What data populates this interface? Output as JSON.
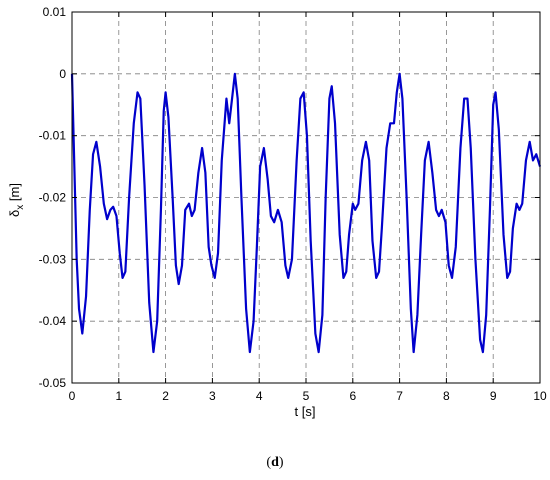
{
  "chart_data": {
    "type": "line",
    "title": "",
    "xlabel": "t [s]",
    "ylabel_main": "δ",
    "ylabel_sub": "x",
    "ylabel_unit": " [m]",
    "xlim": [
      0,
      10
    ],
    "ylim": [
      -0.05,
      0.01
    ],
    "xticks": [
      0,
      1,
      2,
      3,
      4,
      5,
      6,
      7,
      8,
      9,
      10
    ],
    "xtick_labels": [
      "0",
      "1",
      "2",
      "3",
      "4",
      "5",
      "6",
      "7",
      "8",
      "9",
      "10"
    ],
    "yticks": [
      0.01,
      0,
      -0.01,
      -0.02,
      -0.03,
      -0.04,
      -0.05
    ],
    "ytick_labels": [
      "0.01",
      "0",
      "-0.01",
      "-0.02",
      "-0.03",
      "-0.04",
      "-0.05"
    ],
    "grid": true,
    "legend": "none",
    "series": [
      {
        "color": "#0000cc",
        "points": [
          [
            0.0,
            0.0
          ],
          [
            0.05,
            -0.015
          ],
          [
            0.1,
            -0.03
          ],
          [
            0.15,
            -0.038
          ],
          [
            0.22,
            -0.042
          ],
          [
            0.3,
            -0.036
          ],
          [
            0.38,
            -0.022
          ],
          [
            0.45,
            -0.013
          ],
          [
            0.52,
            -0.011
          ],
          [
            0.6,
            -0.015
          ],
          [
            0.68,
            -0.021
          ],
          [
            0.75,
            -0.0235
          ],
          [
            0.82,
            -0.022
          ],
          [
            0.88,
            -0.0215
          ],
          [
            0.95,
            -0.023
          ],
          [
            1.02,
            -0.029
          ],
          [
            1.08,
            -0.033
          ],
          [
            1.14,
            -0.032
          ],
          [
            1.22,
            -0.02
          ],
          [
            1.32,
            -0.008
          ],
          [
            1.4,
            -0.003
          ],
          [
            1.46,
            -0.004
          ],
          [
            1.55,
            -0.018
          ],
          [
            1.65,
            -0.037
          ],
          [
            1.74,
            -0.045
          ],
          [
            1.82,
            -0.04
          ],
          [
            1.9,
            -0.022
          ],
          [
            1.96,
            -0.006
          ],
          [
            2.0,
            -0.003
          ],
          [
            2.06,
            -0.007
          ],
          [
            2.15,
            -0.02
          ],
          [
            2.22,
            -0.031
          ],
          [
            2.28,
            -0.034
          ],
          [
            2.35,
            -0.031
          ],
          [
            2.42,
            -0.022
          ],
          [
            2.5,
            -0.021
          ],
          [
            2.56,
            -0.023
          ],
          [
            2.62,
            -0.022
          ],
          [
            2.7,
            -0.016
          ],
          [
            2.78,
            -0.012
          ],
          [
            2.85,
            -0.016
          ],
          [
            2.92,
            -0.028
          ],
          [
            2.98,
            -0.031
          ],
          [
            3.05,
            -0.033
          ],
          [
            3.12,
            -0.029
          ],
          [
            3.2,
            -0.014
          ],
          [
            3.3,
            -0.004
          ],
          [
            3.36,
            -0.008
          ],
          [
            3.42,
            -0.004
          ],
          [
            3.48,
            0.0
          ],
          [
            3.54,
            -0.004
          ],
          [
            3.62,
            -0.02
          ],
          [
            3.72,
            -0.038
          ],
          [
            3.8,
            -0.045
          ],
          [
            3.88,
            -0.04
          ],
          [
            3.95,
            -0.028
          ],
          [
            4.02,
            -0.015
          ],
          [
            4.1,
            -0.012
          ],
          [
            4.18,
            -0.017
          ],
          [
            4.25,
            -0.023
          ],
          [
            4.32,
            -0.024
          ],
          [
            4.4,
            -0.022
          ],
          [
            4.48,
            -0.024
          ],
          [
            4.56,
            -0.031
          ],
          [
            4.62,
            -0.033
          ],
          [
            4.7,
            -0.03
          ],
          [
            4.8,
            -0.014
          ],
          [
            4.88,
            -0.004
          ],
          [
            4.95,
            -0.003
          ],
          [
            5.02,
            -0.01
          ],
          [
            5.1,
            -0.027
          ],
          [
            5.2,
            -0.042
          ],
          [
            5.27,
            -0.045
          ],
          [
            5.35,
            -0.039
          ],
          [
            5.42,
            -0.02
          ],
          [
            5.5,
            -0.004
          ],
          [
            5.55,
            -0.002
          ],
          [
            5.62,
            -0.008
          ],
          [
            5.72,
            -0.026
          ],
          [
            5.8,
            -0.033
          ],
          [
            5.86,
            -0.032
          ],
          [
            5.92,
            -0.026
          ],
          [
            6.0,
            -0.021
          ],
          [
            6.05,
            -0.022
          ],
          [
            6.12,
            -0.021
          ],
          [
            6.2,
            -0.014
          ],
          [
            6.28,
            -0.011
          ],
          [
            6.35,
            -0.014
          ],
          [
            6.42,
            -0.027
          ],
          [
            6.5,
            -0.033
          ],
          [
            6.56,
            -0.032
          ],
          [
            6.62,
            -0.025
          ],
          [
            6.72,
            -0.012
          ],
          [
            6.8,
            -0.008
          ],
          [
            6.88,
            -0.008
          ],
          [
            6.94,
            -0.003
          ],
          [
            7.0,
            0.0
          ],
          [
            7.06,
            -0.004
          ],
          [
            7.15,
            -0.02
          ],
          [
            7.24,
            -0.038
          ],
          [
            7.3,
            -0.045
          ],
          [
            7.38,
            -0.039
          ],
          [
            7.46,
            -0.026
          ],
          [
            7.54,
            -0.014
          ],
          [
            7.62,
            -0.011
          ],
          [
            7.7,
            -0.016
          ],
          [
            7.78,
            -0.022
          ],
          [
            7.84,
            -0.023
          ],
          [
            7.9,
            -0.022
          ],
          [
            7.98,
            -0.024
          ],
          [
            8.05,
            -0.031
          ],
          [
            8.12,
            -0.033
          ],
          [
            8.2,
            -0.028
          ],
          [
            8.3,
            -0.012
          ],
          [
            8.38,
            -0.004
          ],
          [
            8.45,
            -0.004
          ],
          [
            8.52,
            -0.012
          ],
          [
            8.62,
            -0.03
          ],
          [
            8.72,
            -0.043
          ],
          [
            8.78,
            -0.045
          ],
          [
            8.85,
            -0.039
          ],
          [
            8.93,
            -0.022
          ],
          [
            9.0,
            -0.005
          ],
          [
            9.05,
            -0.003
          ],
          [
            9.12,
            -0.009
          ],
          [
            9.22,
            -0.026
          ],
          [
            9.3,
            -0.033
          ],
          [
            9.36,
            -0.032
          ],
          [
            9.42,
            -0.025
          ],
          [
            9.5,
            -0.021
          ],
          [
            9.56,
            -0.022
          ],
          [
            9.62,
            -0.021
          ],
          [
            9.7,
            -0.014
          ],
          [
            9.78,
            -0.011
          ],
          [
            9.85,
            -0.014
          ],
          [
            9.92,
            -0.013
          ],
          [
            10.0,
            -0.015
          ]
        ]
      }
    ]
  },
  "caption": {
    "open": "(",
    "letter": "d",
    "close": ")"
  }
}
